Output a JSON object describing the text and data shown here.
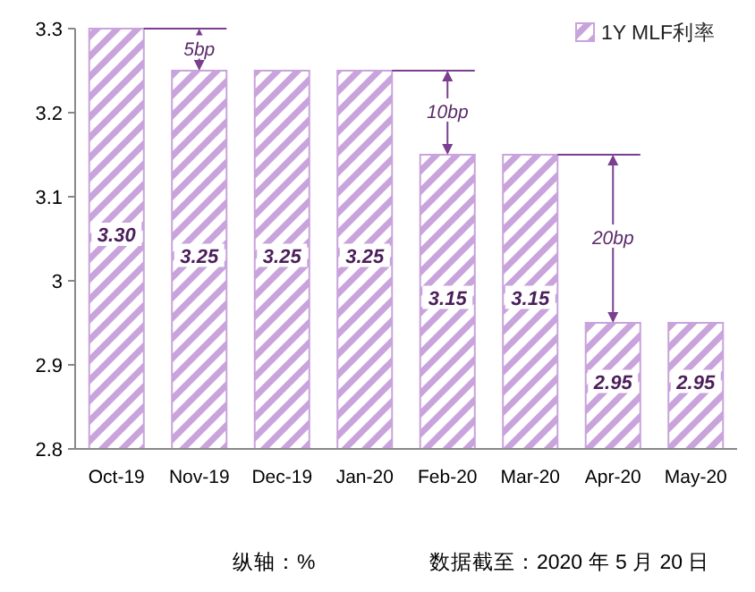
{
  "chart_data": {
    "type": "bar",
    "categories": [
      "Oct-19",
      "Nov-19",
      "Dec-19",
      "Jan-20",
      "Feb-20",
      "Mar-20",
      "Apr-20",
      "May-20"
    ],
    "series": [
      {
        "name": "1Y MLF利率",
        "color": "#c9a3dc",
        "values": [
          3.3,
          3.25,
          3.25,
          3.25,
          3.15,
          3.15,
          2.95,
          2.95
        ],
        "value_labels": [
          "3.30",
          "3.25",
          "3.25",
          "3.25",
          "3.15",
          "3.15",
          "2.95",
          "2.95"
        ]
      }
    ],
    "ylim": [
      2.8,
      3.3
    ],
    "yticks": [
      2.8,
      2.9,
      3,
      3.1,
      3.2,
      3.3
    ],
    "legend": "top right",
    "annotations": [
      {
        "text": "5bp",
        "x": "Nov-19",
        "y": 3.275
      },
      {
        "text": "10bp",
        "x": "Feb-20",
        "y": 3.2
      },
      {
        "text": "20bp",
        "x": "Apr-20",
        "y": 3.05
      },
      "纵轴：%",
      "数据截至：2020 年 5 月 20 日"
    ]
  }
}
